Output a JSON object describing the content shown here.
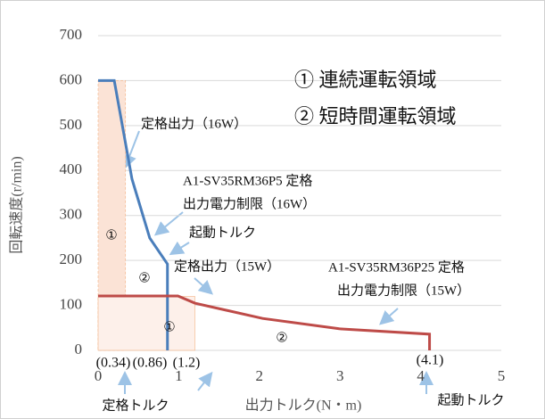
{
  "chart_data": {
    "type": "line",
    "x_label": "出力トルク(N・m)",
    "y_label": "回転速度(r/min)",
    "xlim": [
      0,
      5
    ],
    "ylim": [
      0,
      700
    ],
    "xticks": [
      0,
      1,
      2,
      3,
      4,
      5
    ],
    "yticks": [
      0,
      100,
      200,
      300,
      400,
      500,
      600,
      700
    ],
    "grid": true,
    "regions": [
      {
        "x": [
          0,
          0.34
        ],
        "y": [
          0,
          600
        ],
        "color": "#fbe3d6"
      },
      {
        "x": [
          0,
          1.2
        ],
        "y": [
          0,
          120
        ],
        "color": "#fdf0ea"
      }
    ],
    "series": [
      {
        "color": "#4a7ebb",
        "x": [
          0,
          0.2,
          0.42,
          0.64,
          0.86,
          0.86
        ],
        "values": [
          600,
          600,
          381,
          250,
          192,
          0
        ]
      },
      {
        "color": "#be4b48",
        "x": [
          0,
          0.99,
          1.2,
          2.04,
          2.99,
          4.11,
          4.11
        ],
        "values": [
          121,
          121,
          105,
          71,
          48,
          36,
          0
        ]
      }
    ],
    "legend": [
      "① 連続運転領域",
      "② 短時間運転領域"
    ],
    "annotations": [
      "定格出力（16W）",
      "A1-SV35RM36P5 定格",
      "出力電力制限（16W）",
      "起動トルク",
      "①",
      "②",
      "①",
      "②",
      "定格出力（15W）",
      "A1-SV35RM36P25 定格",
      "出力電力制限（15W）",
      "(0.34)",
      "(0.86)",
      "(1.2)",
      "(4.1)",
      "定格トルク",
      "起動トルク"
    ]
  }
}
